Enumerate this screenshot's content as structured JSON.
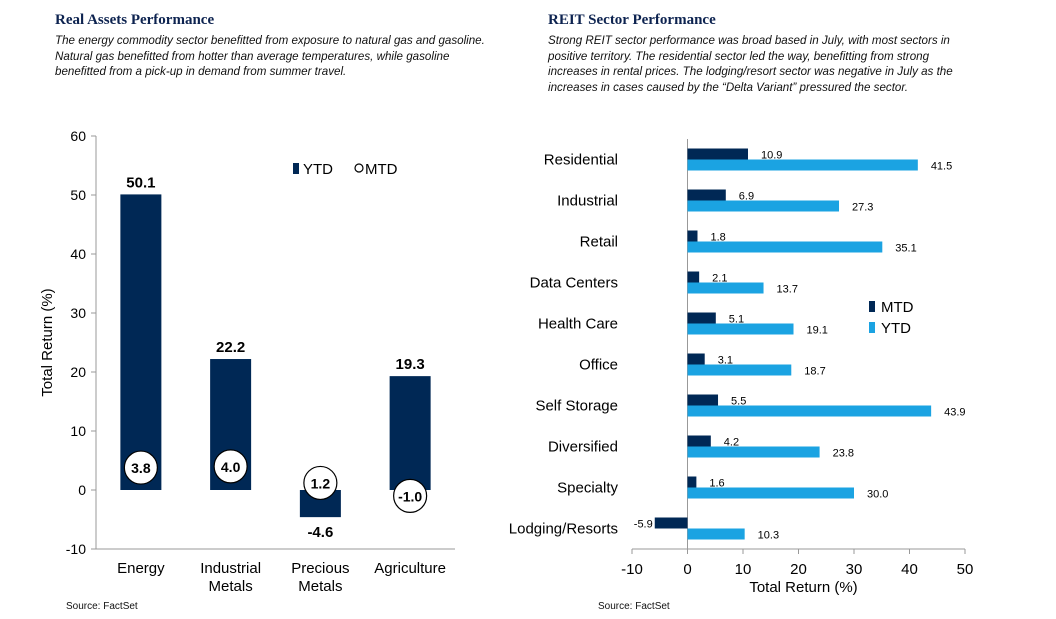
{
  "left": {
    "title": "Real Assets  Performance",
    "description": "The energy  commodity sector benefitted from exposure  to natural gas and gasoline. Natural gas benefitted from hotter than average temperatures, while gasoline benefitted from a pick-up in demand from summer travel.",
    "source": "Source: FactSet"
  },
  "right": {
    "title": "REIT Sector Performance",
    "description": "Strong REIT sector performance  was broad based in July, with most sectors in positive territory.  The residential sector led the way, benefitting from strong increases in rental prices. The lodging/resort sector was negative  in July as the increases in cases caused by the “Delta Variant” pressured the sector.",
    "source": "Source: FactSet"
  },
  "colors": {
    "navy": "#002855",
    "lightblue": "#1ba3e2",
    "axis": "#999999"
  },
  "chart_data": [
    {
      "type": "bar",
      "categories": [
        [
          "Energy"
        ],
        [
          "Industrial",
          "Metals"
        ],
        [
          "Precious",
          "Metals"
        ],
        [
          "Agriculture"
        ]
      ],
      "series": [
        {
          "name": "YTD",
          "values": [
            50.1,
            22.2,
            -4.6,
            19.3
          ]
        },
        {
          "name": "MTD",
          "values": [
            3.8,
            4.0,
            1.2,
            -1.0
          ]
        }
      ],
      "ylabel": "Total Return (%)",
      "ylim": [
        -10,
        60
      ],
      "yticks": [
        -10,
        0,
        10,
        20,
        30,
        40,
        50,
        60
      ],
      "legend": "top-right",
      "grid": false
    },
    {
      "type": "bar",
      "orientation": "horizontal",
      "categories": [
        "Residential",
        "Industrial",
        "Retail",
        "Data Centers",
        "Health Care",
        "Office",
        "Self Storage",
        "Diversified",
        "Specialty",
        "Lodging/Resorts"
      ],
      "series": [
        {
          "name": "MTD",
          "values": [
            10.9,
            6.9,
            1.8,
            2.1,
            5.1,
            3.1,
            5.5,
            4.2,
            1.6,
            -5.9
          ]
        },
        {
          "name": "YTD",
          "values": [
            41.5,
            27.3,
            35.1,
            13.7,
            19.1,
            18.7,
            43.9,
            23.8,
            30.0,
            10.3
          ]
        }
      ],
      "xlabel": "Total Return (%)",
      "xlim": [
        -10,
        50
      ],
      "xticks": [
        -10,
        0,
        10,
        20,
        30,
        40,
        50
      ],
      "legend": "center-right",
      "grid": false
    }
  ]
}
